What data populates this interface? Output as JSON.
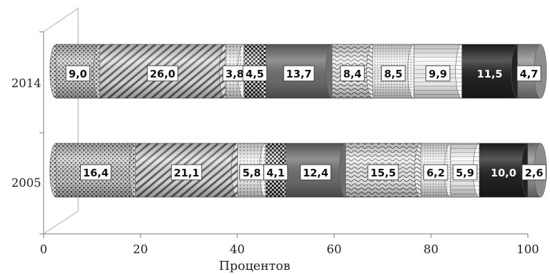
{
  "chart_data": {
    "type": "bar",
    "orientation": "horizontal",
    "stacked": true,
    "stack_mode": "percent",
    "categories": [
      "2005",
      "2014"
    ],
    "series": [
      {
        "values": [
          16.4,
          9.0
        ],
        "labels": [
          "16,4",
          "9,0"
        ],
        "color": "#9a9a9a",
        "pattern": "dots"
      },
      {
        "values": [
          21.1,
          26.0
        ],
        "labels": [
          "21,1",
          "26,0"
        ],
        "color": "#7a7a7a",
        "pattern": "diagonal"
      },
      {
        "values": [
          5.8,
          3.8
        ],
        "labels": [
          "5,8",
          "3,8"
        ],
        "color": "#c8c8c8",
        "pattern": "light-dots"
      },
      {
        "values": [
          4.1,
          4.5
        ],
        "labels": [
          "4,1",
          "4,5"
        ],
        "color": "#555555",
        "pattern": "checker"
      },
      {
        "values": [
          12.4,
          13.7
        ],
        "labels": [
          "12,4",
          "13,7"
        ],
        "color": "#6e6e6e",
        "pattern": "solid"
      },
      {
        "values": [
          15.5,
          8.4
        ],
        "labels": [
          "15,5",
          "8,4"
        ],
        "color": "#b0b0b0",
        "pattern": "waves"
      },
      {
        "values": [
          6.2,
          8.5
        ],
        "labels": [
          "6,2",
          "8,5"
        ],
        "color": "#d4d4d4",
        "pattern": "fine-dots"
      },
      {
        "values": [
          5.9,
          9.9
        ],
        "labels": [
          "5,9",
          "9,9"
        ],
        "color": "#e8e8e8",
        "pattern": "horizontal"
      },
      {
        "values": [
          10.0,
          11.5
        ],
        "labels": [
          "10,0",
          "11,5"
        ],
        "color": "#222222",
        "pattern": "solid"
      },
      {
        "values": [
          2.6,
          4.7
        ],
        "labels": [
          "2,6",
          "4,7"
        ],
        "color": "#8c8c8c",
        "pattern": "solid"
      }
    ],
    "x_ticks": [
      "0",
      "20",
      "40",
      "60",
      "80",
      "100"
    ],
    "xlabel": "Процентов",
    "ylabel": "",
    "xlim": [
      0,
      100
    ],
    "grid": false,
    "legend": "none"
  }
}
